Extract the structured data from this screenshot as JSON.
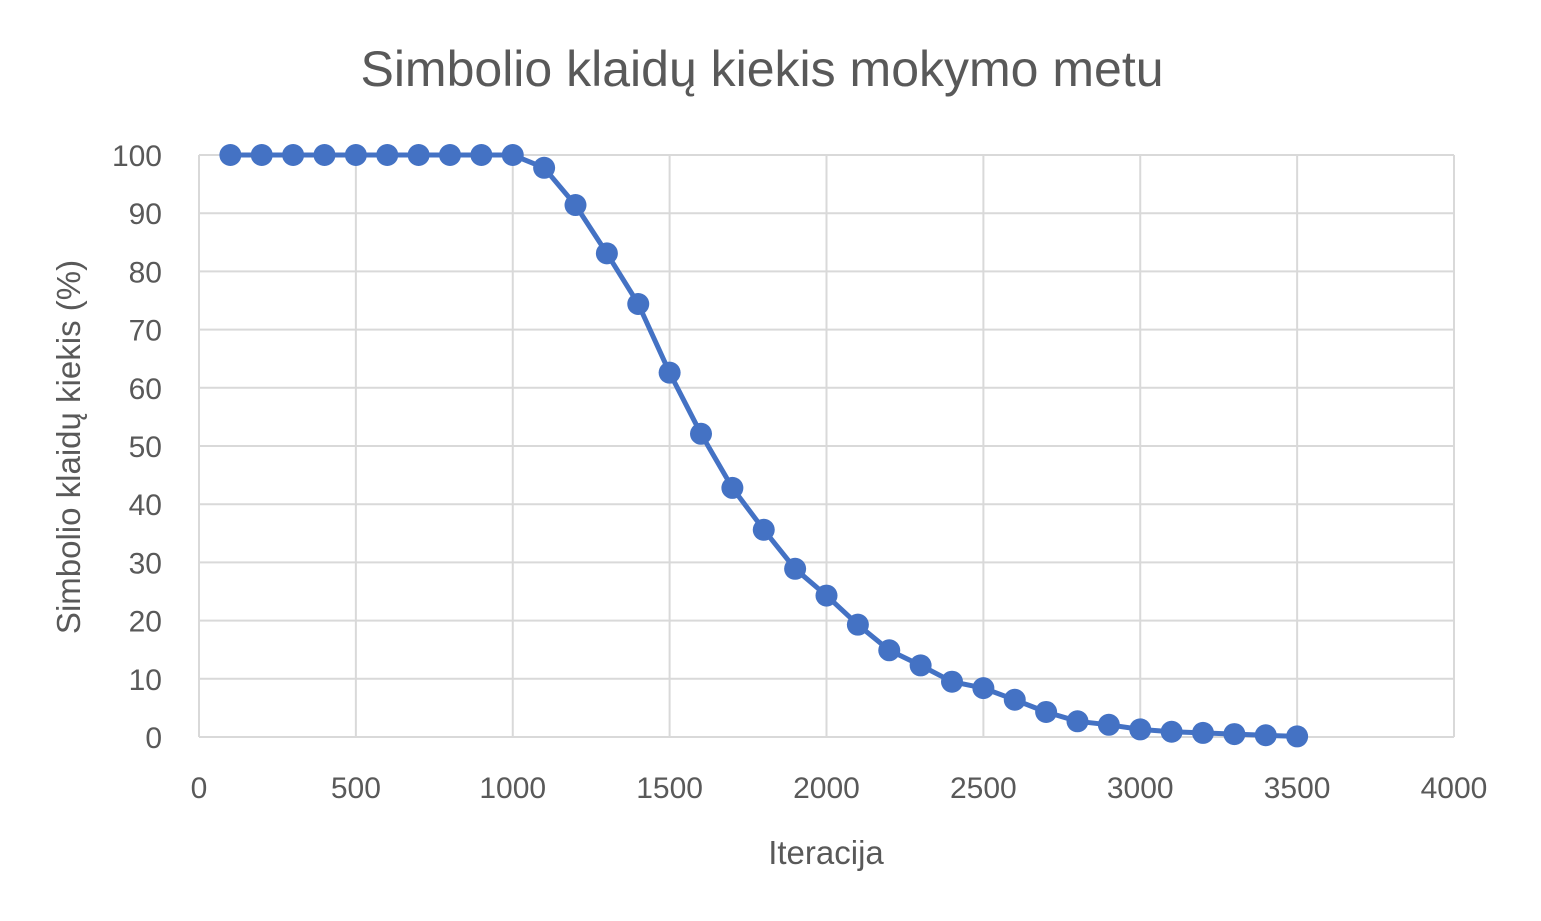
{
  "chart_data": {
    "type": "line",
    "title": "Simbolio klaidų kiekis mokymo metu",
    "xlabel": "Iteracija",
    "ylabel": "Simbolio klaidų kiekis (%)",
    "xlim": [
      0,
      4000
    ],
    "ylim": [
      0,
      100
    ],
    "xticks": [
      0,
      500,
      1000,
      1500,
      2000,
      2500,
      3000,
      3500,
      4000
    ],
    "yticks": [
      0,
      10,
      20,
      30,
      40,
      50,
      60,
      70,
      80,
      90,
      100
    ],
    "grid": true,
    "legend": "none",
    "series": [
      {
        "color": "#4472c4",
        "x": [
          100,
          200,
          300,
          400,
          500,
          600,
          700,
          800,
          900,
          1000,
          1100,
          1200,
          1300,
          1400,
          1500,
          1600,
          1700,
          1800,
          1900,
          2000,
          2100,
          2200,
          2300,
          2400,
          2500,
          2600,
          2700,
          2800,
          2900,
          3000,
          3100,
          3200,
          3300,
          3400,
          3500
        ],
        "values": [
          100,
          100,
          100,
          100,
          100,
          100,
          100,
          100,
          100,
          100,
          97.8,
          91.4,
          83.1,
          74.4,
          62.6,
          52.1,
          42.8,
          35.6,
          28.9,
          24.3,
          19.3,
          14.9,
          12.3,
          9.5,
          8.4,
          6.4,
          4.3,
          2.7,
          2.1,
          1.3,
          0.9,
          0.7,
          0.5,
          0.3,
          0.1
        ]
      }
    ]
  }
}
